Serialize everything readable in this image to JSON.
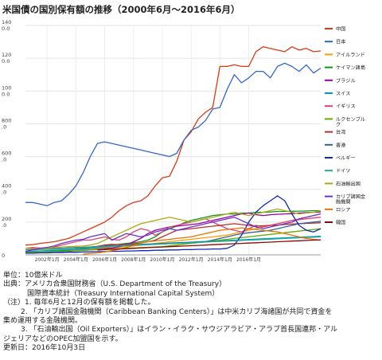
{
  "title": "米国債の国別保有額の推移（2000年6月～2016年6月）",
  "footer": {
    "unit": "単位：10億米ドル",
    "source_1": "出典：アメリカ合衆国財務省（U.S. Department of the Treasury）",
    "source_2": "国際資本統計（Treasury International Capital System）",
    "note_1": "（注）1. 毎年6月と12月の保有額を掲載した。",
    "note_2": "2. 「カリブ諸国金融機関（Caribbean Banking Centers）」は中米カリブ海諸国が共同で資金を",
    "note_2b": "集め運用する金融機関。",
    "note_3": "3. 「石油輸出国（Oil Exporters）」はイラン・イラク・サウジアラビア・アラブ首長国連邦・アル",
    "note_3b": "ジェリアなどのOPEC加盟国を示す。",
    "updated": "更新日：2016年10月3日"
  },
  "chart_data": {
    "type": "line",
    "ylim": [
      0,
      1400
    ],
    "yticks": [
      "0",
      "200\n.0",
      "400\n.0",
      "600\n.0",
      "800\n.0",
      "100\n0.0",
      "120\n0.0",
      "140\n0.0"
    ],
    "xticks": [
      "2002年1月",
      "2004年1月",
      "2006年1月",
      "2008年1月",
      "2010年1月",
      "2012年1月",
      "2014年1月",
      "2016年1月"
    ],
    "series": [
      {
        "name": "中国",
        "color": "#dc3912",
        "start": 0,
        "values": [
          60,
          62,
          70,
          75,
          80,
          90,
          100,
          120,
          140,
          160,
          180,
          200,
          230,
          270,
          300,
          320,
          330,
          360,
          420,
          470,
          480,
          570,
          700,
          750,
          830,
          870,
          900,
          1150,
          1150,
          1160,
          1150,
          1150,
          1240,
          1270,
          1260,
          1250,
          1240,
          1270,
          1250,
          1260,
          1240,
          1245
        ]
      },
      {
        "name": "日本",
        "color": "#3366cc",
        "start": 0,
        "values": [
          320,
          320,
          310,
          300,
          320,
          330,
          370,
          420,
          500,
          600,
          680,
          690,
          680,
          670,
          660,
          650,
          640,
          630,
          620,
          610,
          600,
          620,
          700,
          760,
          780,
          820,
          890,
          900,
          1010,
          1100,
          1050,
          1080,
          1120,
          1120,
          1080,
          1150,
          1170,
          1150,
          1120,
          1160,
          1110,
          1140
        ]
      },
      {
        "name": "アイルランド",
        "color": "#ff9900",
        "start": 0,
        "values": [
          20,
          22,
          24,
          25,
          26,
          28,
          30,
          32,
          35,
          38,
          40,
          42,
          44,
          46,
          50,
          55,
          60,
          65,
          70,
          75,
          80,
          85,
          90,
          95,
          100,
          105,
          110,
          115,
          120,
          130,
          140,
          150,
          160,
          170,
          180,
          190,
          200,
          210,
          220,
          230,
          240,
          250
        ]
      },
      {
        "name": "ケイマン諸島",
        "color": "#109618",
        "start": 0,
        "values": [
          10,
          12,
          14,
          18,
          22,
          26,
          30,
          35,
          40,
          45,
          50,
          55,
          60,
          65,
          70,
          75,
          80,
          90,
          110,
          140,
          160,
          175,
          195,
          210,
          220,
          230,
          240,
          245,
          250,
          250,
          255,
          255,
          260,
          260,
          262,
          265,
          265,
          266,
          267,
          268,
          270,
          270
        ]
      },
      {
        "name": "ブラジル",
        "color": "#990099",
        "start": 0,
        "values": [
          10,
          12,
          14,
          16,
          18,
          20,
          22,
          25,
          28,
          30,
          34,
          38,
          42,
          50,
          60,
          80,
          100,
          130,
          150,
          160,
          170,
          175,
          180,
          185,
          190,
          200,
          210,
          220,
          230,
          240,
          250,
          255,
          245,
          240,
          245,
          248,
          250,
          252,
          255,
          258,
          260,
          262
        ]
      },
      {
        "name": "スイス",
        "color": "#0099c6",
        "start": 0,
        "values": [
          20,
          22,
          24,
          26,
          28,
          30,
          32,
          34,
          36,
          40,
          44,
          48,
          52,
          56,
          60,
          62,
          64,
          66,
          68,
          70,
          72,
          74,
          76,
          78,
          80,
          82,
          84,
          86,
          88,
          90,
          92,
          94,
          96,
          98,
          100,
          102,
          104,
          106,
          108,
          110,
          112,
          114
        ]
      },
      {
        "name": "イギリス",
        "color": "#dd4477",
        "start": 0,
        "values": [
          40,
          45,
          42,
          38,
          48,
          60,
          70,
          80,
          90,
          90,
          100,
          110,
          95,
          90,
          110,
          140,
          160,
          150,
          120,
          140,
          170,
          180,
          190,
          200,
          210,
          220,
          200,
          180,
          160,
          150,
          140,
          160,
          180,
          170,
          180,
          190,
          200,
          210,
          215,
          220,
          225,
          230
        ]
      },
      {
        "name": "ルクセンブルク",
        "color": "#66aa00",
        "start": 0,
        "values": [
          15,
          16,
          17,
          18,
          20,
          22,
          24,
          26,
          28,
          30,
          32,
          34,
          36,
          38,
          40,
          42,
          44,
          46,
          48,
          50,
          55,
          60,
          65,
          70,
          75,
          80,
          85,
          90,
          95,
          100,
          105,
          110,
          115,
          120,
          125,
          130,
          135,
          140,
          145,
          150,
          155,
          160
        ]
      },
      {
        "name": "台湾",
        "color": "#b82e2e",
        "start": 0,
        "values": [
          30,
          32,
          34,
          36,
          38,
          40,
          42,
          44,
          46,
          48,
          52,
          60,
          64,
          62,
          66,
          68,
          72,
          80,
          90,
          110,
          130,
          150,
          155,
          160,
          165,
          170,
          175,
          180,
          185,
          190,
          185,
          180,
          175,
          178,
          180,
          182,
          185,
          188,
          190,
          192,
          194,
          196
        ]
      },
      {
        "name": "香港",
        "color": "#316395",
        "start": 0,
        "values": [
          30,
          32,
          34,
          36,
          38,
          40,
          42,
          44,
          46,
          48,
          50,
          52,
          54,
          56,
          58,
          60,
          62,
          64,
          66,
          68,
          70,
          72,
          74,
          76,
          78,
          80,
          90,
          100,
          110,
          120,
          130,
          135,
          140,
          145,
          150,
          160,
          170,
          180,
          190,
          195,
          200,
          205
        ]
      },
      {
        "name": "ベルギー",
        "color": "#0b28b8",
        "start": 0,
        "values": [
          10,
          10,
          12,
          12,
          14,
          14,
          16,
          16,
          18,
          18,
          20,
          20,
          22,
          22,
          24,
          24,
          26,
          26,
          28,
          28,
          30,
          30,
          32,
          32,
          34,
          34,
          36,
          36,
          40,
          60,
          120,
          200,
          260,
          300,
          330,
          360,
          330,
          250,
          180,
          150,
          140,
          160
        ]
      },
      {
        "name": "ドイツ",
        "color": "#22aa99",
        "start": 0,
        "values": [
          30,
          30,
          32,
          34,
          36,
          38,
          40,
          42,
          44,
          46,
          48,
          50,
          52,
          54,
          56,
          58,
          60,
          62,
          64,
          66,
          68,
          70,
          72,
          74,
          76,
          78,
          80,
          82,
          84,
          86,
          88,
          90,
          92,
          94,
          96,
          98,
          100,
          102,
          104,
          106,
          108,
          110
        ]
      },
      {
        "name": "石油輸出国",
        "color": "#aaaa11",
        "start": 0,
        "values": [
          40,
          38,
          36,
          40,
          44,
          48,
          50,
          52,
          54,
          60,
          70,
          90,
          110,
          130,
          150,
          170,
          190,
          200,
          210,
          220,
          230,
          220,
          210,
          200,
          210,
          220,
          230,
          240,
          250,
          260,
          250,
          240,
          250,
          260,
          270,
          280,
          270,
          260,
          250,
          255,
          260,
          270
        ]
      },
      {
        "name": "カリブ諸国金融機関",
        "color": "#6633cc",
        "start": 0,
        "values": [
          20,
          30,
          40,
          45,
          55,
          70,
          80,
          90,
          95,
          110,
          120,
          130,
          90,
          110,
          130,
          120,
          110,
          120,
          140,
          150,
          160,
          150,
          160,
          170,
          180,
          190,
          200,
          210,
          220,
          230,
          210,
          190,
          170,
          160,
          170,
          180,
          190,
          200,
          220,
          230,
          240,
          250
        ]
      },
      {
        "name": "ロシア",
        "color": "#e67300",
        "start": 8,
        "values": [
          5,
          8,
          12,
          18,
          26,
          34,
          44,
          58,
          72,
          80,
          85,
          90,
          95,
          100,
          105,
          110,
          120,
          130,
          140,
          150,
          155,
          160,
          165,
          160,
          155,
          150,
          145,
          140,
          130,
          120,
          110,
          100,
          95,
          90
        ]
      },
      {
        "name": "韓国",
        "color": "#8b0707",
        "start": 10,
        "values": [
          30,
          32,
          34,
          36,
          38,
          40,
          42,
          44,
          46,
          48,
          50,
          52,
          54,
          56,
          58,
          60,
          62,
          64,
          66,
          68,
          70,
          72,
          74,
          76,
          78,
          80,
          82,
          84,
          86,
          88,
          90,
          92
        ]
      }
    ]
  }
}
